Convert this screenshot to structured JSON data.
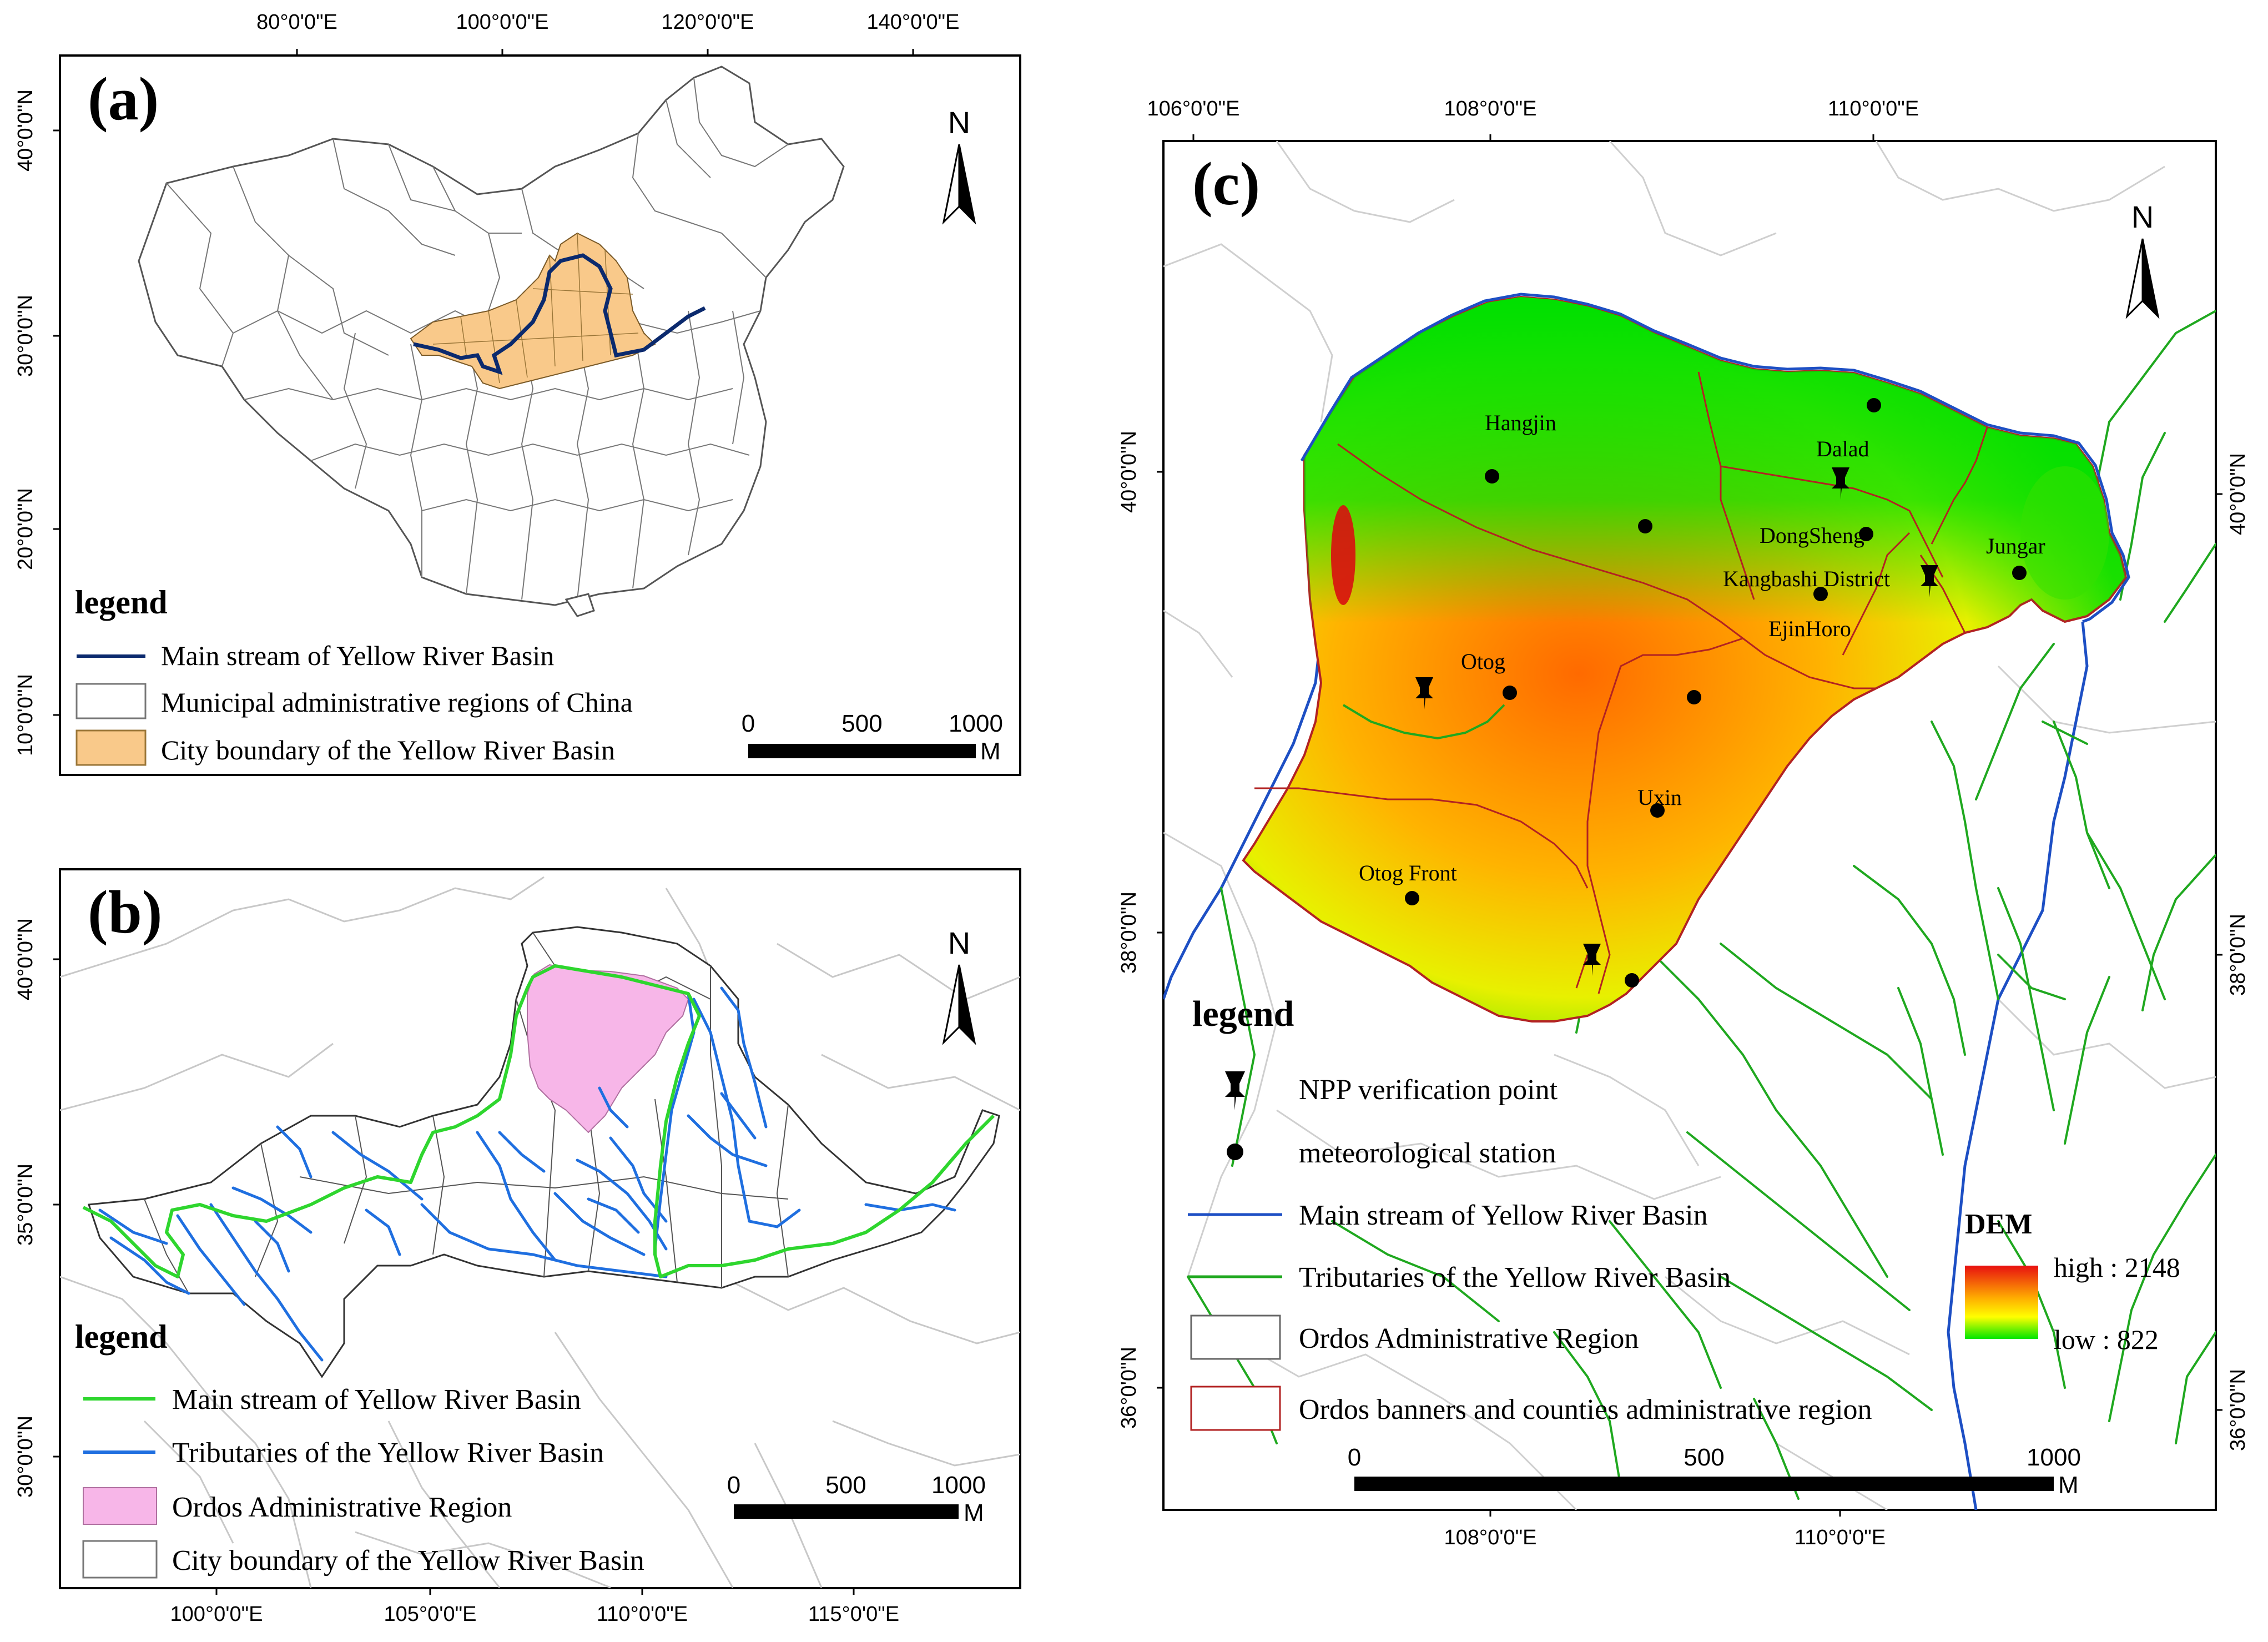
{
  "panel_a": {
    "label": "(a)",
    "top_ticks": [
      "80°0'0\"E",
      "100°0'0\"E",
      "120°0'0\"E",
      "140°0'0\"E"
    ],
    "left_ticks": [
      "40°0'0\"N",
      "30°0'0\"N",
      "20°0'0\"N",
      "10°0'0\"N"
    ],
    "north": "N",
    "legend_title": "legend",
    "legend": {
      "main_stream": "Main stream of Yellow River Basin",
      "municipal": "Municipal administrative regions of China",
      "city_boundary": "City boundary of the Yellow River Basin"
    },
    "scale": {
      "zero": "0",
      "mid": "500",
      "max": "1000",
      "unit": "M"
    },
    "colors": {
      "basin_fill": "#f9c98a",
      "main_stream": "#0b2a6e"
    }
  },
  "panel_b": {
    "label": "(b)",
    "bottom_ticks": [
      "100°0'0\"E",
      "105°0'0\"E",
      "110°0'0\"E",
      "115°0'0\"E"
    ],
    "left_ticks": [
      "40°0'0\"N",
      "35°0'0\"N",
      "30°0'0\"N"
    ],
    "north": "N",
    "legend_title": "legend",
    "legend": {
      "main_stream": "Main stream of Yellow River Basin",
      "tributaries": "Tributaries of the Yellow River Basin",
      "ordos": "Ordos Administrative Region",
      "city_boundary": "City boundary of the Yellow River Basin"
    },
    "scale": {
      "zero": "0",
      "mid": "500",
      "max": "1000",
      "unit": "M"
    },
    "colors": {
      "main_stream": "#2ed62e",
      "tributaries": "#1f6fe0",
      "ordos_fill": "#f7b6e8"
    }
  },
  "panel_c": {
    "label": "(c)",
    "top_ticks": [
      "106°0'0\"E",
      "108°0'0\"E",
      "110°0'0\"E"
    ],
    "bottom_ticks": [
      "108°0'0\"E",
      "110°0'0\"E"
    ],
    "left_ticks": [
      "40°0'0\"N",
      "38°0'0\"N",
      "36°0'0\"N"
    ],
    "right_ticks": [
      "40°0'0\"N",
      "38°0'0\"N",
      "36°0'0\"N"
    ],
    "north": "N",
    "places": [
      "Hangjin",
      "Dalad",
      "DongSheng",
      "Jungar",
      "Kangbashi District",
      "EjinHoro",
      "Otog",
      "Uxin",
      "Otog Front"
    ],
    "legend_title": "legend",
    "legend": {
      "npp": "NPP verification point",
      "met": "meteorological station",
      "main_stream": "Main stream of Yellow River Basin",
      "tributaries": "Tributaries of the Yellow River Basin",
      "ordos": "Ordos Administrative Region",
      "banners": "Ordos banners and counties administrative region"
    },
    "dem": {
      "title": "DEM",
      "high": "high : 2148",
      "low": "low : 822"
    },
    "scale": {
      "zero": "0",
      "mid": "500",
      "max": "1000",
      "unit": "M"
    },
    "colors": {
      "main_stream": "#1d4fc4",
      "tributaries": "#1fa81f",
      "banner_border": "#b22222"
    }
  }
}
